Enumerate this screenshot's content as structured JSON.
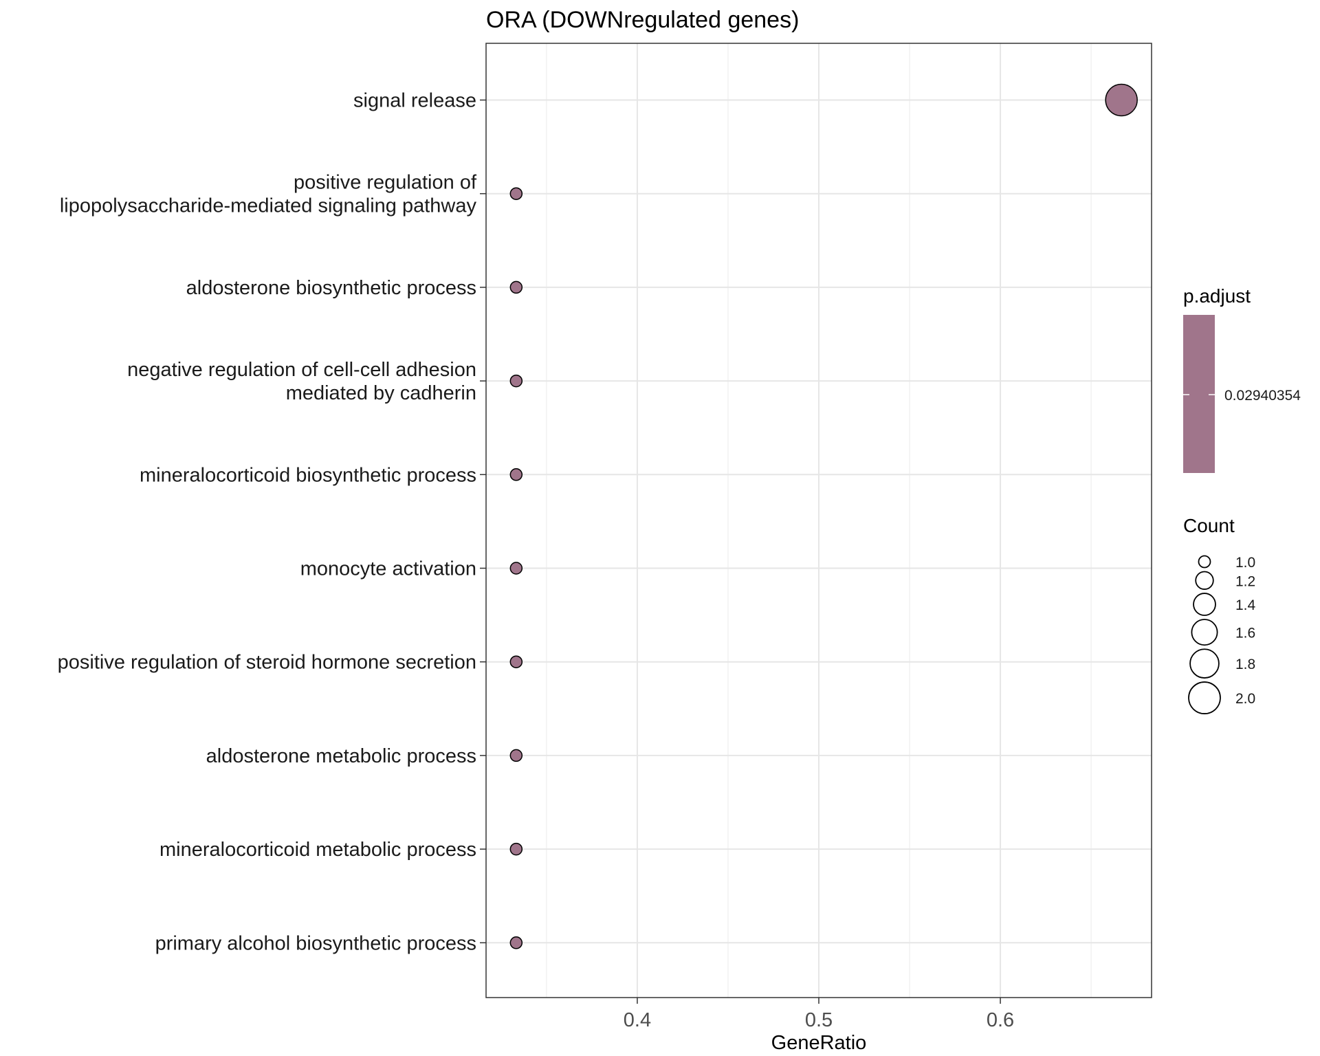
{
  "chart_data": {
    "type": "scatter",
    "title": "ORA (DOWNregulated genes)",
    "xlabel": "GeneRatio",
    "ylabel": "",
    "xlim": [
      0.3167,
      0.6833
    ],
    "xticks": [
      0.4,
      0.5,
      0.6
    ],
    "xtick_labels": [
      "0.4",
      "0.5",
      "0.6"
    ],
    "grid": true,
    "point_color": "#a0758b",
    "categories": [
      [
        "signal release"
      ],
      [
        "positive regulation of",
        "lipopolysaccharide-mediated signaling pathway"
      ],
      [
        "aldosterone biosynthetic process"
      ],
      [
        "negative regulation of cell-cell adhesion",
        "mediated by cadherin"
      ],
      [
        "mineralocorticoid biosynthetic process"
      ],
      [
        "monocyte activation"
      ],
      [
        "positive regulation of steroid hormone secretion"
      ],
      [
        "aldosterone metabolic process"
      ],
      [
        "mineralocorticoid metabolic process"
      ],
      [
        "primary alcohol biosynthetic process"
      ]
    ],
    "points": [
      {
        "gene_ratio": 0.6667,
        "count": 2,
        "p_adjust": 0.02940354
      },
      {
        "gene_ratio": 0.3333,
        "count": 1,
        "p_adjust": 0.02940354
      },
      {
        "gene_ratio": 0.3333,
        "count": 1,
        "p_adjust": 0.02940354
      },
      {
        "gene_ratio": 0.3333,
        "count": 1,
        "p_adjust": 0.02940354
      },
      {
        "gene_ratio": 0.3333,
        "count": 1,
        "p_adjust": 0.02940354
      },
      {
        "gene_ratio": 0.3333,
        "count": 1,
        "p_adjust": 0.02940354
      },
      {
        "gene_ratio": 0.3333,
        "count": 1,
        "p_adjust": 0.02940354
      },
      {
        "gene_ratio": 0.3333,
        "count": 1,
        "p_adjust": 0.02940354
      },
      {
        "gene_ratio": 0.3333,
        "count": 1,
        "p_adjust": 0.02940354
      },
      {
        "gene_ratio": 0.3333,
        "count": 1,
        "p_adjust": 0.02940354
      }
    ],
    "legend": {
      "color_title": "p.adjust",
      "color_value_label": "0.02940354",
      "size_title": "Count",
      "size_breaks": [
        1.0,
        1.2,
        1.4,
        1.6,
        1.8,
        2.0
      ],
      "size_labels": [
        "1.0",
        "1.2",
        "1.4",
        "1.6",
        "1.8",
        "2.0"
      ],
      "position": "right"
    }
  }
}
